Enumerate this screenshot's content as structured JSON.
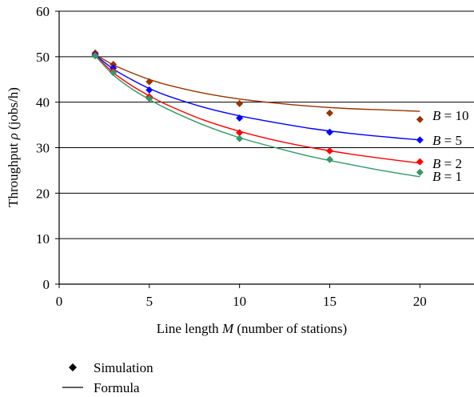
{
  "chart_data": {
    "type": "scatter",
    "xlabel_prefix": "Line length ",
    "xlabel_var": "M",
    "xlabel_suffix": " (number of stations)",
    "ylabel_prefix": "Throughput ",
    "ylabel_var": "ρ",
    "ylabel_suffix": " (jobs/h)",
    "xlim": [
      0,
      23
    ],
    "ylim": [
      0,
      60
    ],
    "x_ticks": [
      0,
      5,
      10,
      15,
      20
    ],
    "y_ticks": [
      0,
      10,
      20,
      30,
      40,
      50,
      60
    ],
    "grid": "horizontal",
    "series": [
      {
        "name": "B = 10",
        "name_var": "B",
        "name_rest": " = 10",
        "color": "#993300",
        "simulation": {
          "x": [
            2,
            3,
            5,
            10,
            15,
            20
          ],
          "y": [
            50.8,
            48.3,
            44.5,
            39.7,
            37.6,
            36.2
          ]
        },
        "formula": {
          "x": [
            2,
            3,
            4,
            5,
            6,
            8,
            10,
            12,
            14,
            16,
            18,
            20
          ],
          "y": [
            50.5,
            48.2,
            46.5,
            45.0,
            43.8,
            42.0,
            40.7,
            39.8,
            39.1,
            38.6,
            38.3,
            38.0
          ]
        }
      },
      {
        "name": "B = 5",
        "name_var": "B",
        "name_rest": " = 5",
        "color": "#0000ff",
        "simulation": {
          "x": [
            2,
            3,
            5,
            10,
            15,
            20
          ],
          "y": [
            50.5,
            47.5,
            42.7,
            36.5,
            33.4,
            31.7
          ]
        },
        "formula": {
          "x": [
            2,
            3,
            4,
            5,
            6,
            8,
            10,
            12,
            14,
            16,
            18,
            20
          ],
          "y": [
            50.4,
            47.3,
            45.0,
            43.0,
            41.4,
            38.9,
            37.0,
            35.5,
            34.2,
            33.2,
            32.4,
            31.7
          ]
        }
      },
      {
        "name": "B = 2",
        "name_var": "B",
        "name_rest": " = 2",
        "color": "#ff0000",
        "simulation": {
          "x": [
            2,
            3,
            5,
            10,
            15,
            20
          ],
          "y": [
            50.3,
            46.8,
            41.2,
            33.3,
            29.3,
            26.9
          ]
        },
        "formula": {
          "x": [
            2,
            3,
            4,
            5,
            6,
            8,
            10,
            12,
            14,
            16,
            18,
            20
          ],
          "y": [
            50.3,
            46.5,
            43.7,
            41.4,
            39.4,
            36.1,
            33.6,
            31.6,
            30.0,
            28.7,
            27.6,
            26.6
          ]
        }
      },
      {
        "name": "B = 1",
        "name_var": "B",
        "name_rest": " = 1",
        "color": "#339966",
        "simulation": {
          "x": [
            2,
            3,
            5,
            10,
            15,
            20
          ],
          "y": [
            50.2,
            46.5,
            40.8,
            32.0,
            27.4,
            24.6
          ]
        },
        "formula": {
          "x": [
            2,
            3,
            4,
            5,
            6,
            8,
            10,
            12,
            14,
            16,
            18,
            20
          ],
          "y": [
            50.2,
            46.0,
            43.0,
            40.6,
            38.5,
            35.0,
            32.2,
            30.0,
            28.0,
            26.4,
            24.9,
            23.6
          ]
        }
      }
    ],
    "legend": {
      "placement": "bottom-left",
      "entries": [
        {
          "marker": "diamond",
          "label": "Simulation"
        },
        {
          "marker": "line",
          "label": "Formula"
        }
      ]
    }
  }
}
